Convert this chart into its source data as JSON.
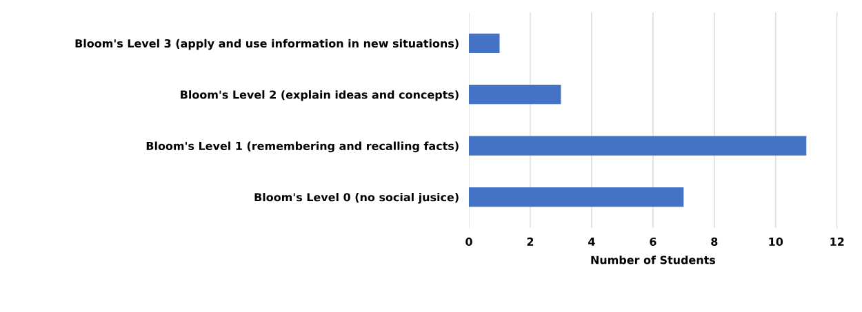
{
  "chart_data": {
    "type": "bar",
    "orientation": "horizontal",
    "xlabel": "Number of Students",
    "categories": [
      "Bloom's Level 3 (apply and use information in new situations)",
      "Bloom's Level 2 (explain ideas and concepts)",
      "Bloom's Level 1 (remembering and recalling facts)",
      "Bloom's Level 0 (no social jusice)"
    ],
    "values": [
      1,
      3,
      11,
      7
    ],
    "color": "#4472c4",
    "xlim": [
      0,
      12
    ],
    "xticks": [
      0,
      2,
      4,
      6,
      8,
      10,
      12
    ],
    "grid": "x",
    "legend": false
  }
}
